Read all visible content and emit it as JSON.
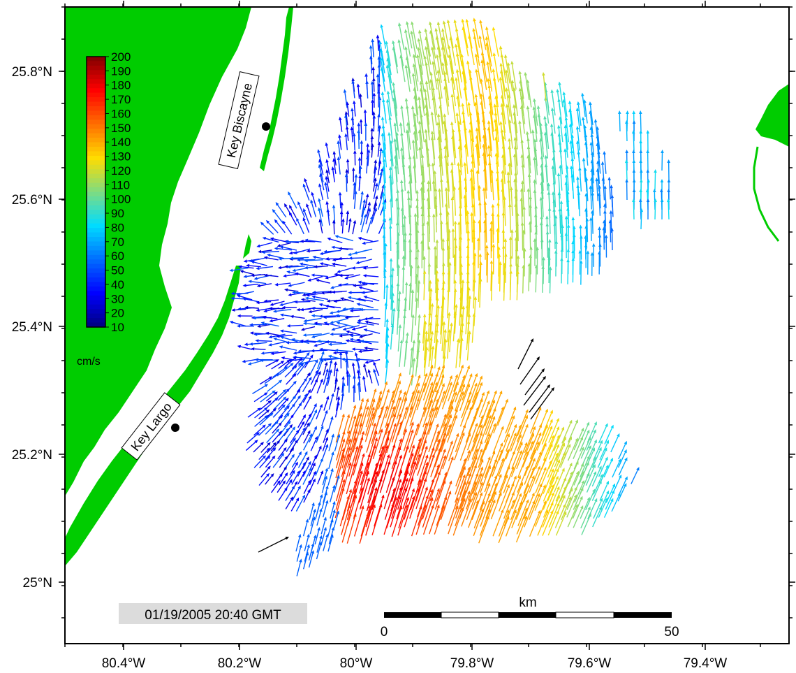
{
  "map": {
    "lat_labels": [
      "25.8°N",
      "25.6°N",
      "25.4°N",
      "25.2°N",
      "25°N"
    ],
    "lon_labels": [
      "80.4°W",
      "80.2°W",
      "80°W",
      "79.8°W",
      "79.6°W",
      "79.4°W"
    ],
    "places": [
      {
        "name": "Key Biscayne"
      },
      {
        "name": "Key Largo"
      }
    ],
    "timestamp": "01/19/2005 20:40 GMT",
    "colors": {
      "land": "#00cc00",
      "sea": "#ffffff",
      "frame": "#000000",
      "reference_vectors": "#000000",
      "timestamp_box": "#dcdcdc"
    }
  },
  "colorbar": {
    "unit": "cm/s",
    "range": [
      10,
      200
    ],
    "ticks": [
      "200",
      "190",
      "180",
      "170",
      "160",
      "150",
      "140",
      "130",
      "120",
      "110",
      "100",
      "90",
      "80",
      "70",
      "60",
      "50",
      "40",
      "30",
      "20",
      "10"
    ]
  },
  "scalebar": {
    "unit_label": "km",
    "start_label": "0",
    "end_label": "50"
  }
}
